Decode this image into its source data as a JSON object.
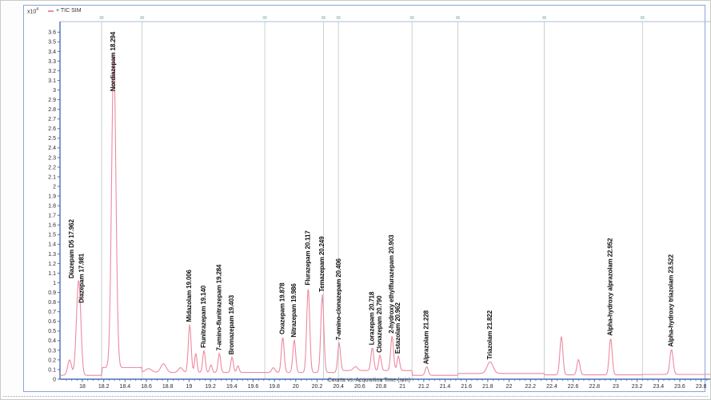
{
  "window": {
    "scale_label": "x10",
    "scale_exponent": "4",
    "legend_label": "+ TIC SIM",
    "xaxis_title": "Counts vs. Acquisition Time (min)"
  },
  "colors": {
    "trace": "#ee8aa0",
    "axis": "#4a6fb5",
    "frame_light": "#aabfde",
    "pane_border": "#8aa6d6",
    "segment_line": "#bac7c4",
    "segment_cap": "#9dbfae",
    "tick_text": "#2a2a2a",
    "peak_label_text": "#101010"
  },
  "chart_data": {
    "type": "line",
    "title": "+ TIC SIM",
    "xlabel": "Counts vs. Acquisition Time (min)",
    "ylabel": "Counts (x10^4)",
    "xlim": [
      17.79,
      24.02
    ],
    "ylim": [
      0,
      3.71
    ],
    "x_ticks": {
      "start": 18,
      "step": 0.2,
      "end": 23.8,
      "minor_step": 0.05
    },
    "y_ticks": {
      "start": 0,
      "step": 0.1,
      "end": 3.6
    },
    "grid": "off",
    "legend_position": "top-left",
    "segment_boundaries_min": [
      18.18,
      18.56,
      19.71,
      20.26,
      20.4,
      21.09,
      21.52,
      22.33,
      23.25
    ],
    "baseline_segments": [
      {
        "from": 17.79,
        "to": 18.18,
        "level": 0.04
      },
      {
        "from": 18.18,
        "to": 18.56,
        "level": 0.12
      },
      {
        "from": 18.56,
        "to": 19.71,
        "level": 0.07
      },
      {
        "from": 19.71,
        "to": 20.4,
        "level": 0.07
      },
      {
        "from": 20.4,
        "to": 21.09,
        "level": 0.09
      },
      {
        "from": 21.09,
        "to": 21.52,
        "level": 0.04
      },
      {
        "from": 21.52,
        "to": 22.33,
        "level": 0.06
      },
      {
        "from": 22.33,
        "to": 23.25,
        "level": 0.045
      },
      {
        "from": 23.25,
        "to": 24.02,
        "level": 0.05
      }
    ],
    "peaks": [
      {
        "name": "",
        "rt": 17.88,
        "height": 0.16,
        "sigma": 0.018,
        "label": ""
      },
      {
        "name": "Diazepam D5",
        "rt": 17.962,
        "height": 0.9,
        "sigma": 0.019,
        "label": "Diazepam D5 17.962",
        "label_dx": -6
      },
      {
        "name": "Diazepam",
        "rt": 17.981,
        "height": 0.18,
        "sigma": 0.015,
        "label": "Diazepam 17.981",
        "label_dx": 4
      },
      {
        "name": "Nordiazepam",
        "rt": 18.294,
        "height": 3.26,
        "sigma": 0.02,
        "label": "Nordiazepam 18.294"
      },
      {
        "name": "",
        "rt": 18.62,
        "height": 0.04,
        "sigma": 0.03,
        "label": ""
      },
      {
        "name": "",
        "rt": 18.76,
        "height": 0.09,
        "sigma": 0.025,
        "label": ""
      },
      {
        "name": "",
        "rt": 18.92,
        "height": 0.05,
        "sigma": 0.02,
        "label": ""
      },
      {
        "name": "Midazolam",
        "rt": 19.006,
        "height": 0.5,
        "sigma": 0.013,
        "label": "Midazolam 19.006"
      },
      {
        "name": "",
        "rt": 19.063,
        "height": 0.2,
        "sigma": 0.011,
        "label": ""
      },
      {
        "name": "Flunitrazepam",
        "rt": 19.14,
        "height": 0.23,
        "sigma": 0.012,
        "label": "Flunitrazepam 19.140"
      },
      {
        "name": "",
        "rt": 19.205,
        "height": 0.08,
        "sigma": 0.011,
        "label": ""
      },
      {
        "name": "7-amino-flunitrazepam",
        "rt": 19.284,
        "height": 0.2,
        "sigma": 0.012,
        "label": "7-amino-flunitrazepam 19.284"
      },
      {
        "name": "Bromazepam",
        "rt": 19.403,
        "height": 0.16,
        "sigma": 0.012,
        "label": "Bromazepam 19.403"
      },
      {
        "name": "",
        "rt": 19.458,
        "height": 0.07,
        "sigma": 0.011,
        "label": ""
      },
      {
        "name": "",
        "rt": 19.79,
        "height": 0.05,
        "sigma": 0.015,
        "label": ""
      },
      {
        "name": "Oxazepam",
        "rt": 19.878,
        "height": 0.37,
        "sigma": 0.013,
        "label": "Oxazepam 19.878"
      },
      {
        "name": "Nitrazepam",
        "rt": 19.986,
        "height": 0.34,
        "sigma": 0.013,
        "label": "Nitrazepam 19.986"
      },
      {
        "name": "Flurazepam",
        "rt": 20.117,
        "height": 0.88,
        "sigma": 0.014,
        "label": "Flurazepam 20.117"
      },
      {
        "name": "Temazepam",
        "rt": 20.249,
        "height": 0.81,
        "sigma": 0.014,
        "label": "Temazepam 20.249"
      },
      {
        "name": "7-amino-clonazepam",
        "rt": 20.406,
        "height": 0.29,
        "sigma": 0.013,
        "label": "7-amino-clonazepam 20.406"
      },
      {
        "name": "",
        "rt": 20.56,
        "height": 0.04,
        "sigma": 0.02,
        "label": ""
      },
      {
        "name": "Lorazepam",
        "rt": 20.718,
        "height": 0.24,
        "sigma": 0.013,
        "label": "Lorazepam 20.718"
      },
      {
        "name": "Clonazepam",
        "rt": 20.79,
        "height": 0.16,
        "sigma": 0.012,
        "label": "Clonazepam 20.790"
      },
      {
        "name": "2-hydroxy ethylflurazepam",
        "rt": 20.903,
        "height": 0.36,
        "sigma": 0.013,
        "label": "2-hydroxy ethylflurazepam 20.903"
      },
      {
        "name": "Estazolam",
        "rt": 20.962,
        "height": 0.15,
        "sigma": 0.012,
        "label": "Estazolam 20.962"
      },
      {
        "name": "Alprazolam",
        "rt": 21.228,
        "height": 0.09,
        "sigma": 0.014,
        "label": "Alprazolam 21.228"
      },
      {
        "name": "Triazolam",
        "rt": 21.822,
        "height": 0.12,
        "sigma": 0.028,
        "label": "Triazolam 21.822"
      },
      {
        "name": "",
        "rt": 22.49,
        "height": 0.4,
        "sigma": 0.014,
        "label": ""
      },
      {
        "name": "",
        "rt": 22.65,
        "height": 0.16,
        "sigma": 0.014,
        "label": ""
      },
      {
        "name": "Alpha-hydroxy alprazolam",
        "rt": 22.952,
        "height": 0.38,
        "sigma": 0.014,
        "label": "Alpha-hydroxy alprazolam 22.952"
      },
      {
        "name": "Alpha-hydroxy triazolam",
        "rt": 23.522,
        "height": 0.26,
        "sigma": 0.015,
        "label": "Alpha-hydroxy triazolam 23.522"
      }
    ]
  }
}
